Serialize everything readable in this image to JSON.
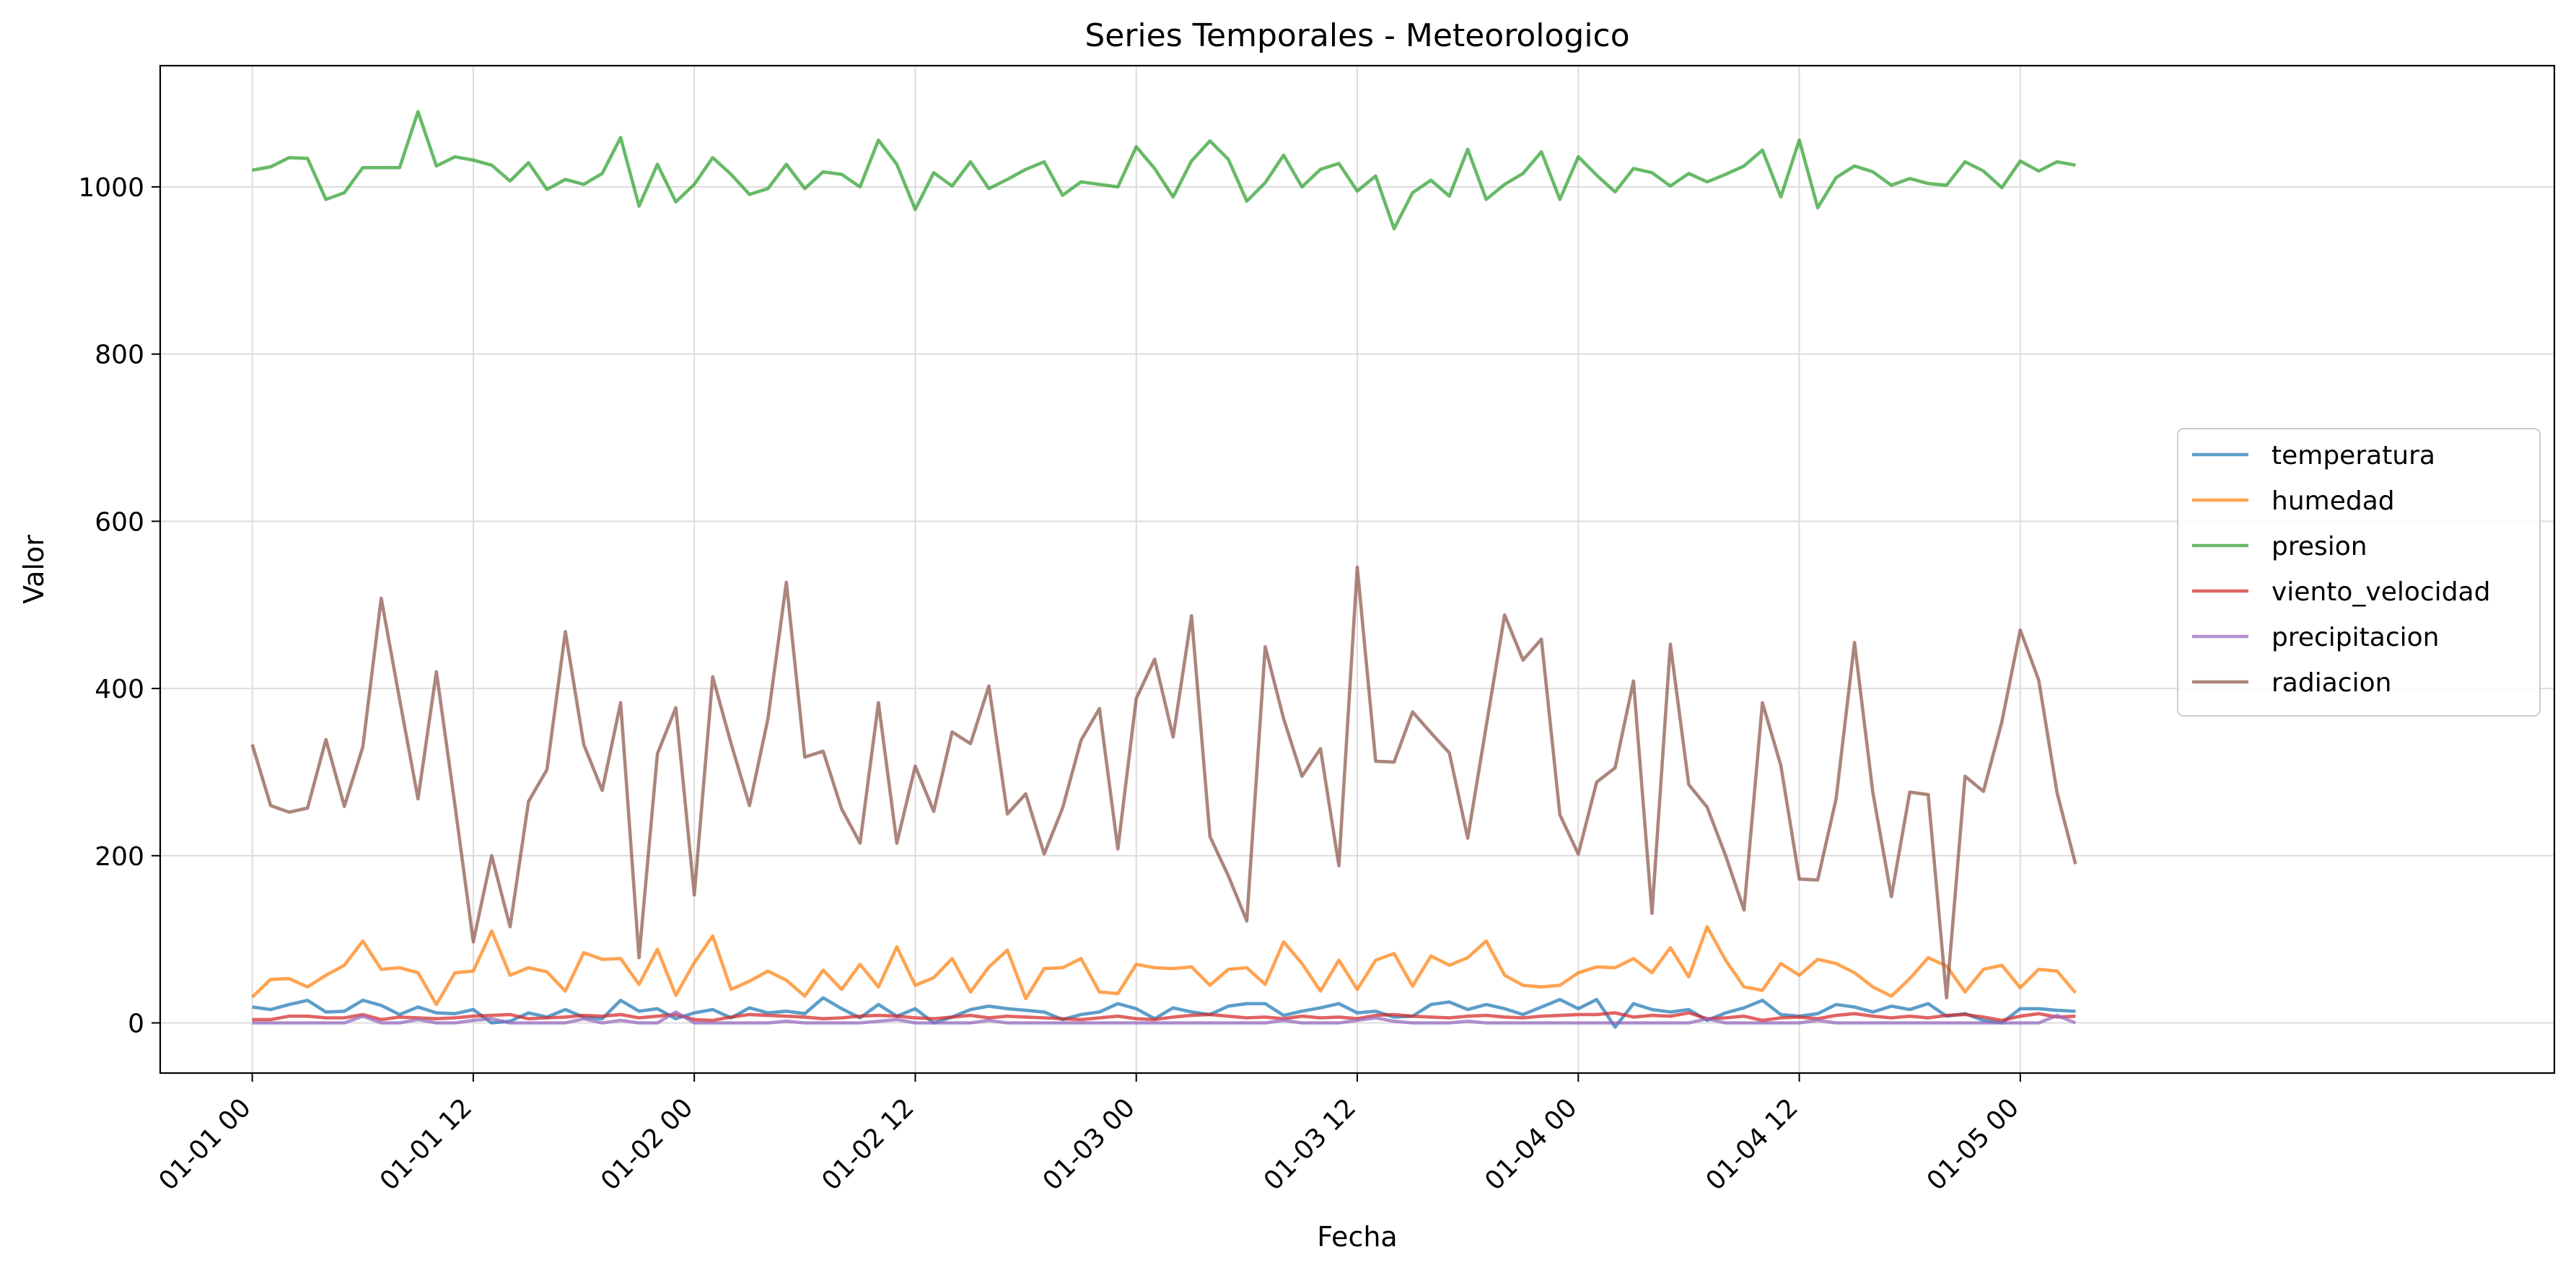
{
  "chart_data": {
    "type": "line",
    "title": "Series Temporales - Meteorologico",
    "xlabel": "Fecha",
    "ylabel": "Valor",
    "x_start": "2024-01-01 00:00",
    "x_step_hours": 1,
    "xlim_hours": [
      -5,
      125
    ],
    "ylim": [
      -60,
      1145
    ],
    "x_ticks": [
      {
        "label": "01-01 00",
        "hour": 0
      },
      {
        "label": "01-01 12",
        "hour": 12
      },
      {
        "label": "01-02 00",
        "hour": 24
      },
      {
        "label": "01-02 12",
        "hour": 36
      },
      {
        "label": "01-03 00",
        "hour": 48
      },
      {
        "label": "01-03 12",
        "hour": 60
      },
      {
        "label": "01-04 00",
        "hour": 72
      },
      {
        "label": "01-04 12",
        "hour": 84
      },
      {
        "label": "01-05 00",
        "hour": 96
      }
    ],
    "y_ticks": [
      0,
      200,
      400,
      600,
      800,
      1000
    ],
    "grid": true,
    "legend_position": "center-right",
    "series": [
      {
        "name": "temperatura",
        "color": "#1f77b4",
        "values": [
          19,
          16,
          22,
          27,
          13,
          14,
          27,
          21,
          10,
          19,
          12,
          11,
          16,
          0,
          2,
          12,
          7,
          16,
          7,
          5,
          27,
          14,
          17,
          5,
          12,
          16,
          6,
          18,
          12,
          14,
          11,
          30,
          17,
          6,
          22,
          8,
          17,
          0,
          7,
          16,
          20,
          17,
          15,
          13,
          4,
          10,
          13,
          23,
          17,
          5,
          18,
          13,
          10,
          20,
          23,
          23,
          9,
          14,
          18,
          23,
          12,
          14,
          7,
          8,
          22,
          25,
          16,
          22,
          17,
          10,
          19,
          28,
          17,
          28,
          -5,
          23,
          16,
          13,
          16,
          3,
          12,
          18,
          27,
          10,
          8,
          11,
          22,
          19,
          13,
          20,
          16,
          23,
          8,
          11,
          3,
          0,
          17,
          17,
          15,
          14
        ]
      },
      {
        "name": "humedad",
        "color": "#ff7f0e",
        "values": [
          31,
          52,
          53,
          43,
          57,
          69,
          98,
          64,
          66,
          60,
          22,
          60,
          62,
          110,
          57,
          66,
          61,
          38,
          84,
          76,
          77,
          46,
          88,
          33,
          72,
          104,
          40,
          50,
          62,
          51,
          32,
          63,
          40,
          70,
          43,
          91,
          45,
          54,
          77,
          37,
          67,
          87,
          29,
          65,
          66,
          77,
          37,
          35,
          70,
          66,
          65,
          67,
          45,
          64,
          66,
          46,
          97,
          71,
          38,
          75,
          40,
          75,
          83,
          44,
          80,
          69,
          78,
          98,
          57,
          45,
          43,
          45,
          60,
          67,
          66,
          77,
          60,
          90,
          55,
          115,
          75,
          43,
          39,
          71,
          57,
          76,
          71,
          60,
          43,
          32,
          53,
          78,
          68,
          37,
          64,
          69,
          42,
          64,
          62,
          36
        ]
      },
      {
        "name": "presion",
        "color": "#2ca02c",
        "values": [
          1020,
          1024,
          1035,
          1034,
          985,
          993,
          1023,
          1023,
          1023,
          1090,
          1025,
          1036,
          1032,
          1026,
          1007,
          1029,
          997,
          1009,
          1003,
          1016,
          1059,
          977,
          1027,
          982,
          1003,
          1035,
          1015,
          991,
          998,
          1027,
          998,
          1018,
          1015,
          1000,
          1056,
          1027,
          973,
          1017,
          1001,
          1030,
          998,
          1009,
          1021,
          1030,
          990,
          1006,
          1003,
          1000,
          1048,
          1022,
          988,
          1031,
          1055,
          1033,
          983,
          1005,
          1038,
          1000,
          1021,
          1028,
          995,
          1013,
          950,
          993,
          1008,
          989,
          1045,
          985,
          1003,
          1016,
          1042,
          985,
          1036,
          1014,
          994,
          1022,
          1017,
          1001,
          1016,
          1006,
          1015,
          1025,
          1044,
          988,
          1056,
          975,
          1011,
          1025,
          1018,
          1002,
          1010,
          1004,
          1002,
          1030,
          1019,
          999,
          1031,
          1019,
          1030,
          1026
        ]
      },
      {
        "name": "viento_velocidad",
        "color": "#d62728",
        "values": [
          4,
          4,
          8,
          8,
          6,
          6,
          10,
          4,
          7,
          6,
          5,
          6,
          8,
          9,
          10,
          5,
          6,
          7,
          9,
          8,
          10,
          6,
          8,
          10,
          4,
          3,
          7,
          10,
          9,
          8,
          7,
          5,
          6,
          8,
          9,
          8,
          6,
          5,
          7,
          9,
          6,
          8,
          7,
          6,
          5,
          4,
          6,
          8,
          5,
          4,
          7,
          9,
          10,
          8,
          6,
          7,
          5,
          8,
          6,
          7,
          5,
          9,
          10,
          8,
          7,
          6,
          8,
          9,
          7,
          6,
          8,
          9,
          10,
          10,
          12,
          7,
          9,
          8,
          12,
          5,
          6,
          8,
          3,
          6,
          7,
          5,
          9,
          11,
          8,
          6,
          8,
          6,
          9,
          10,
          7,
          3,
          8,
          11,
          7,
          8
        ]
      },
      {
        "name": "precipitacion",
        "color": "#9467bd",
        "values": [
          0,
          0,
          0,
          0,
          0,
          0,
          8,
          0,
          0,
          4,
          0,
          0,
          3,
          5,
          0,
          0,
          0,
          0,
          5,
          0,
          3,
          0,
          0,
          13,
          0,
          0,
          0,
          0,
          0,
          2,
          0,
          0,
          0,
          0,
          2,
          4,
          0,
          0,
          0,
          0,
          3,
          0,
          0,
          0,
          0,
          0,
          0,
          0,
          0,
          0,
          0,
          0,
          0,
          0,
          0,
          0,
          3,
          0,
          0,
          0,
          3,
          6,
          2,
          0,
          0,
          0,
          2,
          0,
          0,
          0,
          0,
          0,
          0,
          0,
          0,
          0,
          0,
          0,
          0,
          5,
          0,
          0,
          0,
          0,
          0,
          3,
          0,
          0,
          0,
          0,
          0,
          0,
          0,
          0,
          0,
          0,
          0,
          0,
          9,
          0
        ]
      },
      {
        "name": "radiacion",
        "color": "#8c564b",
        "values": [
          333,
          260,
          252,
          257,
          339,
          259,
          330,
          508,
          387,
          268,
          420,
          261,
          97,
          200,
          115,
          265,
          303,
          468,
          333,
          278,
          383,
          78,
          322,
          377,
          153,
          414,
          334,
          260,
          364,
          527,
          318,
          325,
          256,
          215,
          383,
          215,
          307,
          253,
          348,
          334,
          403,
          250,
          274,
          202,
          257,
          338,
          376,
          208,
          388,
          435,
          342,
          487,
          223,
          176,
          122,
          450,
          364,
          295,
          328,
          188,
          545,
          313,
          312,
          372,
          347,
          323,
          221,
          355,
          488,
          434,
          459,
          249,
          202,
          288,
          305,
          409,
          131,
          453,
          285,
          258,
          200,
          135,
          383,
          308,
          172,
          171,
          268,
          455,
          275,
          151,
          276,
          273,
          30,
          295,
          277,
          360,
          470,
          410,
          275,
          190
        ]
      }
    ]
  }
}
